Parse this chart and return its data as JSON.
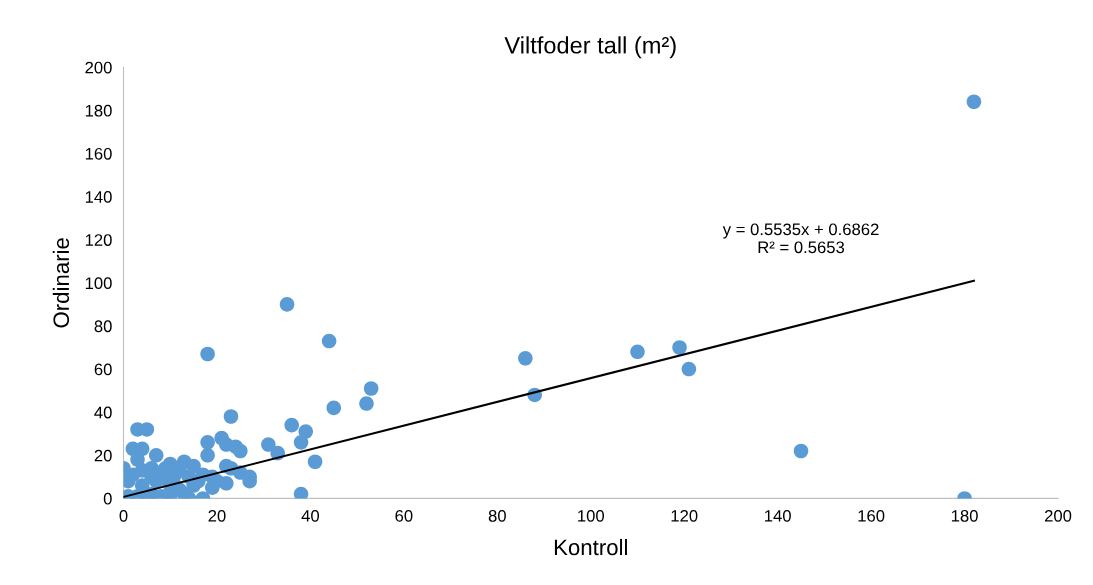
{
  "chart_data": {
    "type": "scatter",
    "title": "Viltfoder tall (m²)",
    "xlabel": "Kontroll",
    "ylabel": "Ordinarie",
    "xlim": [
      0,
      200
    ],
    "xticks": [
      0,
      20,
      40,
      60,
      80,
      100,
      120,
      140,
      160,
      180,
      200
    ],
    "ylim": [
      0,
      200
    ],
    "yticks": [
      0,
      20,
      40,
      60,
      80,
      100,
      120,
      140,
      160,
      180,
      200
    ],
    "grid": false,
    "legend": false,
    "annotations": [
      "y = 0.5535x + 0.6862\nR² = 0.5653"
    ],
    "series": [
      {
        "color": "#5b9bd5",
        "marker": "circle",
        "x": [
          182,
          180,
          145,
          121,
          119,
          110,
          88,
          86,
          53,
          52,
          45,
          44,
          41,
          39,
          38,
          38,
          36,
          35,
          33,
          31,
          27,
          27,
          25,
          24,
          25,
          23,
          22,
          21,
          22,
          18,
          18,
          18,
          20,
          19,
          17,
          14,
          3,
          5,
          2,
          4,
          3,
          7,
          0,
          1,
          10,
          13,
          15,
          12,
          8,
          6,
          9,
          11,
          14,
          16,
          10,
          1,
          3,
          4,
          6,
          8,
          10,
          12,
          15,
          17,
          19,
          23,
          2,
          4,
          7,
          9,
          13,
          22,
          5,
          11,
          6
        ],
        "values": [
          184,
          0,
          22,
          60,
          70,
          68,
          48,
          65,
          51,
          44,
          42,
          73,
          17,
          31,
          26,
          2,
          34,
          90,
          21,
          25,
          8,
          10,
          22,
          24,
          12,
          38,
          25,
          28,
          15,
          67,
          26,
          20,
          8,
          5,
          0,
          0,
          32,
          32,
          23,
          23,
          18,
          20,
          14,
          8,
          16,
          17,
          15,
          13,
          12,
          10,
          9,
          6,
          10,
          8,
          3,
          1,
          1,
          6,
          2,
          1,
          0,
          4,
          6,
          11,
          10,
          14,
          11,
          13,
          8,
          14,
          2,
          7,
          0,
          11,
          14
        ]
      },
      {
        "type": "line",
        "color": "#000000",
        "marker": "none",
        "line_style": "solid",
        "x": [
          0,
          182
        ],
        "values": [
          0.7,
          101
        ]
      }
    ]
  }
}
